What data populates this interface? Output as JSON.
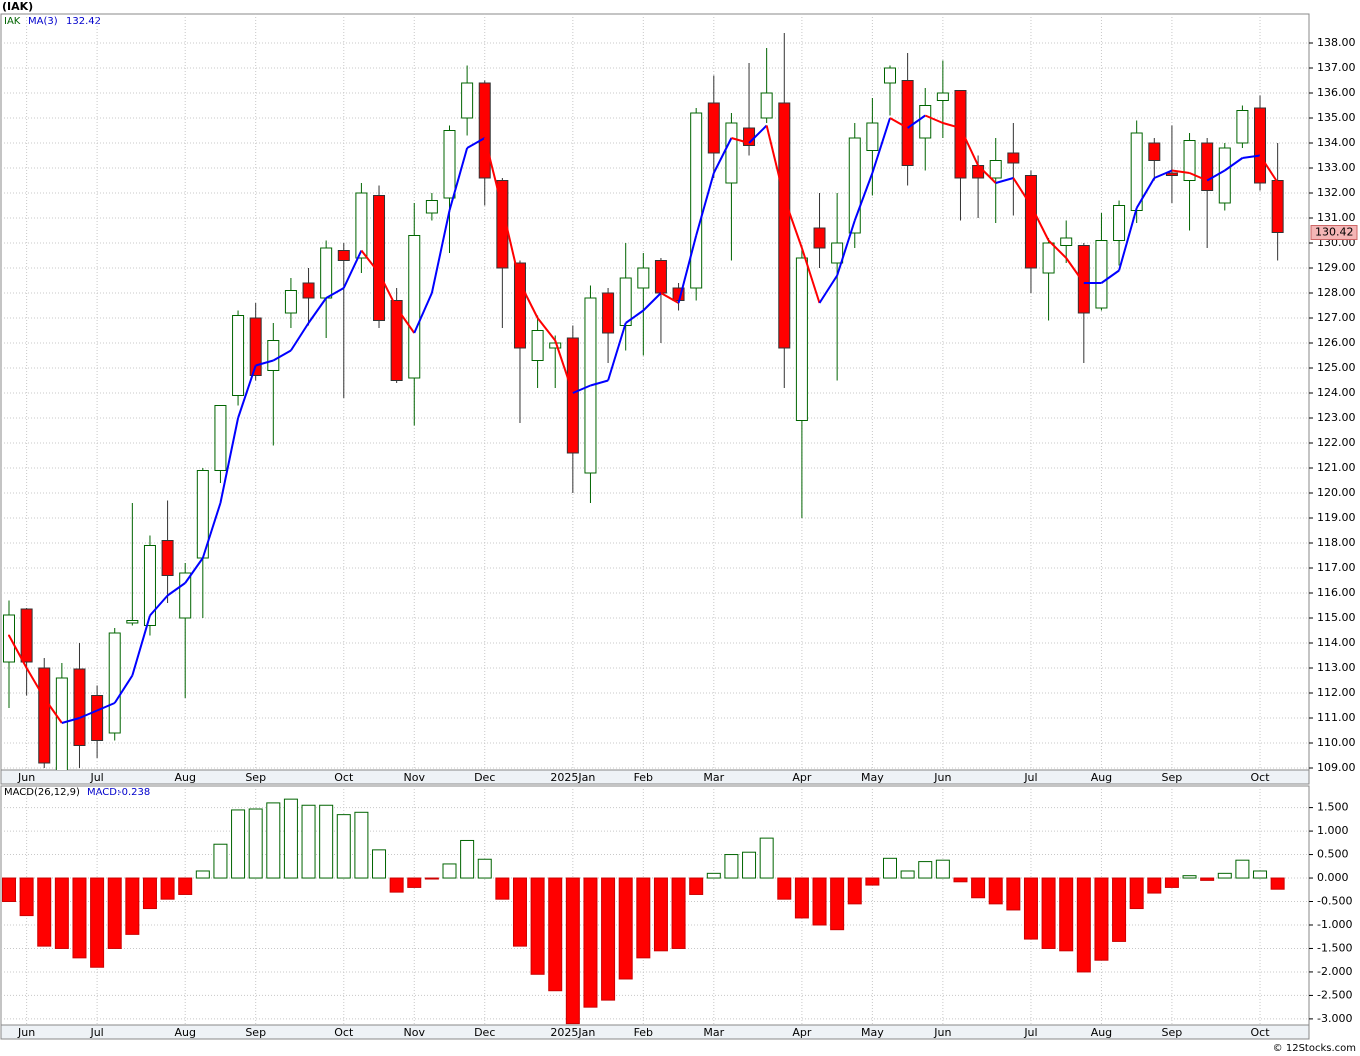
{
  "chart_data": [
    {
      "type": "candlestick",
      "title": "(IAK)",
      "name": "IAK",
      "categories": [
        null,
        "Jun",
        null,
        null,
        null,
        "Jul",
        null,
        null,
        null,
        null,
        "Aug",
        null,
        null,
        null,
        "Sep",
        null,
        null,
        null,
        null,
        "Oct",
        null,
        null,
        null,
        "Nov",
        null,
        null,
        null,
        "Dec",
        null,
        null,
        null,
        null,
        "2025Jan",
        null,
        null,
        null,
        "Feb",
        null,
        null,
        null,
        "Mar",
        null,
        null,
        null,
        null,
        "Apr",
        null,
        null,
        null,
        "May",
        null,
        null,
        null,
        "Jun",
        null,
        null,
        null,
        null,
        "Jul",
        null,
        null,
        null,
        "Aug",
        null,
        null,
        null,
        "Sep",
        null,
        null,
        null,
        null,
        "Oct",
        null
      ],
      "open": [
        113.24,
        115.36,
        113.0,
        108.9,
        112.96,
        111.9,
        110.4,
        114.8,
        114.7,
        118.1,
        115.0,
        117.4,
        120.9,
        123.9,
        127.0,
        124.9,
        127.2,
        128.4,
        127.8,
        129.7,
        129.4,
        131.9,
        127.7,
        124.6,
        131.2,
        131.8,
        135.0,
        136.4,
        132.5,
        129.2,
        125.3,
        125.8,
        126.2,
        120.8,
        128.0,
        126.7,
        128.2,
        129.3,
        128.2,
        128.2,
        135.6,
        132.4,
        134.6,
        135.0,
        135.6,
        122.9,
        130.6,
        129.2,
        130.4,
        133.7,
        136.4,
        136.5,
        134.2,
        135.7,
        136.1,
        133.1,
        132.6,
        133.6,
        132.7,
        128.8,
        129.9,
        129.9,
        127.4,
        130.1,
        131.3,
        134.0,
        132.8,
        132.5,
        134.0,
        131.6,
        134.0,
        135.4,
        132.5
      ],
      "high": [
        115.7,
        115.4,
        113.4,
        113.2,
        114.0,
        112.3,
        114.6,
        119.6,
        118.3,
        119.7,
        117.2,
        121.0,
        123.5,
        127.3,
        127.6,
        126.8,
        128.6,
        129.0,
        130.1,
        130.0,
        132.4,
        132.3,
        128.2,
        131.6,
        132.0,
        134.7,
        137.1,
        136.5,
        132.6,
        129.3,
        127.1,
        126.3,
        126.7,
        128.3,
        128.2,
        130.0,
        129.6,
        129.4,
        128.4,
        135.4,
        136.7,
        135.2,
        137.2,
        137.8,
        138.4,
        129.9,
        132.0,
        132.0,
        134.8,
        135.8,
        137.1,
        137.6,
        136.2,
        137.3,
        136.1,
        133.5,
        134.2,
        134.8,
        132.9,
        130.2,
        130.9,
        130.0,
        131.2,
        131.7,
        134.9,
        134.2,
        134.7,
        134.4,
        134.2,
        134.0,
        135.5,
        135.9,
        134.0
      ],
      "low": [
        111.4,
        111.9,
        109.0,
        108.5,
        109.0,
        109.4,
        110.1,
        114.7,
        114.3,
        115.6,
        111.8,
        115.0,
        120.4,
        123.5,
        124.5,
        121.9,
        126.6,
        126.7,
        126.2,
        123.8,
        128.8,
        126.6,
        124.4,
        122.7,
        130.9,
        129.6,
        134.3,
        131.5,
        126.6,
        122.8,
        124.2,
        124.2,
        120.0,
        119.6,
        125.2,
        125.7,
        125.5,
        126.0,
        127.3,
        127.7,
        132.6,
        129.3,
        133.5,
        134.8,
        124.2,
        119.0,
        129.0,
        124.5,
        129.8,
        131.9,
        135.1,
        132.3,
        132.9,
        134.2,
        130.9,
        131.0,
        130.8,
        131.1,
        128.0,
        126.9,
        129.2,
        125.2,
        127.3,
        129.1,
        130.8,
        132.5,
        131.6,
        130.5,
        129.8,
        131.3,
        133.8,
        132.1,
        129.3
      ],
      "close": [
        115.12,
        113.24,
        109.2,
        112.6,
        109.9,
        110.1,
        114.4,
        114.9,
        117.9,
        116.7,
        116.8,
        120.9,
        123.5,
        127.1,
        124.7,
        126.1,
        128.1,
        127.8,
        129.8,
        129.3,
        132.0,
        126.9,
        124.5,
        130.3,
        131.7,
        134.5,
        136.4,
        132.6,
        129.0,
        125.8,
        126.5,
        126.0,
        121.6,
        127.8,
        126.4,
        128.6,
        129.0,
        128.0,
        127.7,
        135.2,
        133.6,
        134.8,
        133.9,
        136.0,
        125.8,
        129.4,
        129.8,
        130.0,
        134.2,
        134.8,
        137.0,
        133.1,
        135.5,
        136.0,
        132.6,
        132.6,
        133.3,
        133.2,
        129.0,
        130.0,
        130.2,
        127.2,
        130.1,
        131.5,
        134.4,
        133.3,
        132.7,
        134.1,
        132.1,
        133.8,
        135.3,
        132.4,
        130.42
      ],
      "up_color": "#006400",
      "down_color": "#ff0000",
      "overlays": [
        {
          "name": "MA(3)",
          "up_color": "#0000ff",
          "down_color": "#ff0000",
          "values": [
            114.3,
            113.0,
            111.8,
            110.8,
            111.0,
            111.3,
            111.6,
            112.7,
            115.1,
            115.9,
            116.4,
            117.4,
            119.6,
            123.0,
            125.1,
            125.3,
            125.7,
            126.8,
            127.8,
            128.2,
            129.7,
            128.8,
            127.4,
            126.4,
            128.0,
            131.3,
            133.8,
            134.2,
            131.4,
            128.4,
            127.0,
            126.1,
            124.0,
            124.3,
            124.5,
            126.8,
            127.3,
            128.0,
            127.6,
            130.3,
            132.8,
            134.2,
            134.0,
            134.7,
            131.8,
            129.8,
            127.6,
            128.7,
            130.9,
            132.8,
            135.0,
            134.6,
            135.1,
            134.8,
            134.6,
            133.1,
            132.4,
            132.6,
            131.5,
            130.1,
            129.4,
            128.4,
            128.4,
            128.9,
            131.4,
            132.6,
            132.9,
            132.8,
            132.5,
            132.9,
            133.4,
            133.5,
            132.42
          ]
        }
      ],
      "ylim": [
        108.92,
        139.16
      ],
      "yticks": [
        {
          "value": 109,
          "label": "109.00"
        },
        {
          "value": 110,
          "label": "110.00"
        },
        {
          "value": 111,
          "label": "111.00"
        },
        {
          "value": 112,
          "label": "112.00"
        },
        {
          "value": 113,
          "label": "113.00"
        },
        {
          "value": 114,
          "label": "114.00"
        },
        {
          "value": 115,
          "label": "115.00"
        },
        {
          "value": 116,
          "label": "116.00"
        },
        {
          "value": 117,
          "label": "117.00"
        },
        {
          "value": 118,
          "label": "118.00"
        },
        {
          "value": 119,
          "label": "119.00"
        },
        {
          "value": 120,
          "label": "120.00"
        },
        {
          "value": 121,
          "label": "121.00"
        },
        {
          "value": 122,
          "label": "122.00"
        },
        {
          "value": 123,
          "label": "123.00"
        },
        {
          "value": 124,
          "label": "124.00"
        },
        {
          "value": 125,
          "label": "125.00"
        },
        {
          "value": 126,
          "label": "126.00"
        },
        {
          "value": 127,
          "label": "127.00"
        },
        {
          "value": 128,
          "label": "128.00"
        },
        {
          "value": 129,
          "label": "129.00"
        },
        {
          "value": 130,
          "label": "130.00"
        },
        {
          "value": 131,
          "label": "131.00"
        },
        {
          "value": 132,
          "label": "132.00"
        },
        {
          "value": 133,
          "label": "133.00"
        },
        {
          "value": 134,
          "label": "134.00"
        },
        {
          "value": 135,
          "label": "135.00"
        },
        {
          "value": 136,
          "label": "136.00"
        },
        {
          "value": 137,
          "label": "137.00"
        },
        {
          "value": 138,
          "label": "138.00"
        }
      ],
      "grid": true
    },
    {
      "type": "bar",
      "title": "MACD(26,12,9)",
      "name": "MACD:",
      "categories": [
        null,
        "Jun",
        null,
        null,
        null,
        "Jul",
        null,
        null,
        null,
        null,
        "Aug",
        null,
        null,
        null,
        "Sep",
        null,
        null,
        null,
        null,
        "Oct",
        null,
        null,
        null,
        "Nov",
        null,
        null,
        null,
        "Dec",
        null,
        null,
        null,
        null,
        "2025Jan",
        null,
        null,
        null,
        "Feb",
        null,
        null,
        null,
        "Mar",
        null,
        null,
        null,
        null,
        "Apr",
        null,
        null,
        null,
        "May",
        null,
        null,
        null,
        "Jun",
        null,
        null,
        null,
        null,
        "Jul",
        null,
        null,
        null,
        "Aug",
        null,
        null,
        null,
        "Sep",
        null,
        null,
        null,
        null,
        "Oct",
        null
      ],
      "values": [
        -0.5,
        -0.8,
        -1.45,
        -1.5,
        -1.7,
        -1.9,
        -1.5,
        -1.2,
        -0.65,
        -0.45,
        -0.35,
        0.15,
        0.72,
        1.45,
        1.47,
        1.6,
        1.68,
        1.55,
        1.55,
        1.35,
        1.4,
        0.6,
        -0.3,
        -0.2,
        -0.02,
        0.3,
        0.8,
        0.4,
        -0.45,
        -1.45,
        -2.05,
        -2.4,
        -3.1,
        -2.75,
        -2.6,
        -2.15,
        -1.7,
        -1.55,
        -1.5,
        -0.35,
        0.1,
        0.5,
        0.55,
        0.85,
        -0.45,
        -0.85,
        -1.0,
        -1.1,
        -0.55,
        -0.15,
        0.42,
        0.15,
        0.35,
        0.38,
        -0.08,
        -0.42,
        -0.55,
        -0.68,
        -1.3,
        -1.5,
        -1.55,
        -2.0,
        -1.75,
        -1.35,
        -0.65,
        -0.32,
        -0.2,
        0.05,
        -0.05,
        0.1,
        0.38,
        0.15,
        -0.238
      ],
      "up_color": "#006400",
      "down_color": "#ff0000",
      "ylim": [
        -3.13,
        1.96
      ],
      "yticks": [
        {
          "value": 1.5,
          "label": "1.500"
        },
        {
          "value": 1,
          "label": "1.000"
        },
        {
          "value": 0.5,
          "label": "0.500"
        },
        {
          "value": 0,
          "label": "0.000"
        },
        {
          "value": -0.5,
          "label": "-0.500"
        },
        {
          "value": -1,
          "label": "-1.000"
        },
        {
          "value": -1.5,
          "label": "-1.500"
        },
        {
          "value": -2,
          "label": "-2.000"
        },
        {
          "value": -2.5,
          "label": "-2.500"
        },
        {
          "value": -3,
          "label": "-3.000"
        }
      ],
      "grid": true
    }
  ],
  "footer": "© 12Stocks.com"
}
